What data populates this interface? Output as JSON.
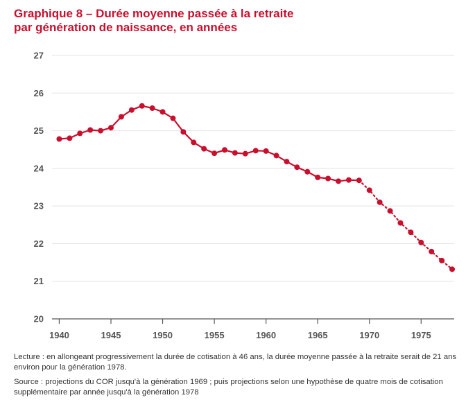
{
  "title_line1": "Graphique 8 – Durée moyenne passée à la retraite",
  "title_line2": "par génération de naissance, en années",
  "lecture": "Lecture : en allongeant progressivement la durée de cotisation à 46 ans, la durée moyenne passée à la retraite serait de 21 ans environ pour la génération 1978.",
  "source": "Source : projections du COR jusqu'à la génération 1969 ; puis projections selon une hypothèse de quatre mois de cotisation supplémentaire par année jusqu'à la génération 1978",
  "chart_data": {
    "type": "line",
    "title": "Graphique 8 – Durée moyenne passée à la retraite par génération de naissance, en années",
    "xlabel": "",
    "ylabel": "",
    "xlim": [
      1939.3,
      1978.2
    ],
    "ylim": [
      20,
      27
    ],
    "x_ticks": [
      1940,
      1945,
      1950,
      1955,
      1960,
      1965,
      1970,
      1975
    ],
    "y_ticks": [
      20,
      21,
      22,
      23,
      24,
      25,
      26,
      27
    ],
    "grid": true,
    "legend": "none",
    "color": "#c8102e",
    "series": [
      {
        "style": "solid",
        "x": [
          1940,
          1941,
          1942,
          1943,
          1944,
          1945,
          1946,
          1947,
          1948,
          1949,
          1950,
          1951,
          1952,
          1953,
          1954,
          1955,
          1956,
          1957,
          1958,
          1959,
          1960,
          1961,
          1962,
          1963,
          1964,
          1965,
          1966,
          1967,
          1968,
          1969
        ],
        "y": [
          24.78,
          24.8,
          24.93,
          25.02,
          25.0,
          25.08,
          25.37,
          25.55,
          25.66,
          25.6,
          25.5,
          25.33,
          24.97,
          24.69,
          24.52,
          24.4,
          24.49,
          24.41,
          24.39,
          24.47,
          24.46,
          24.34,
          24.18,
          24.03,
          23.91,
          23.76,
          23.73,
          23.66,
          23.69,
          23.68
        ]
      },
      {
        "style": "dotted",
        "x": [
          1969,
          1970,
          1971,
          1972,
          1973,
          1974,
          1975,
          1976,
          1977,
          1978
        ],
        "y": [
          23.68,
          23.42,
          23.1,
          22.87,
          22.55,
          22.3,
          22.03,
          21.79,
          21.55,
          21.32
        ]
      }
    ]
  }
}
